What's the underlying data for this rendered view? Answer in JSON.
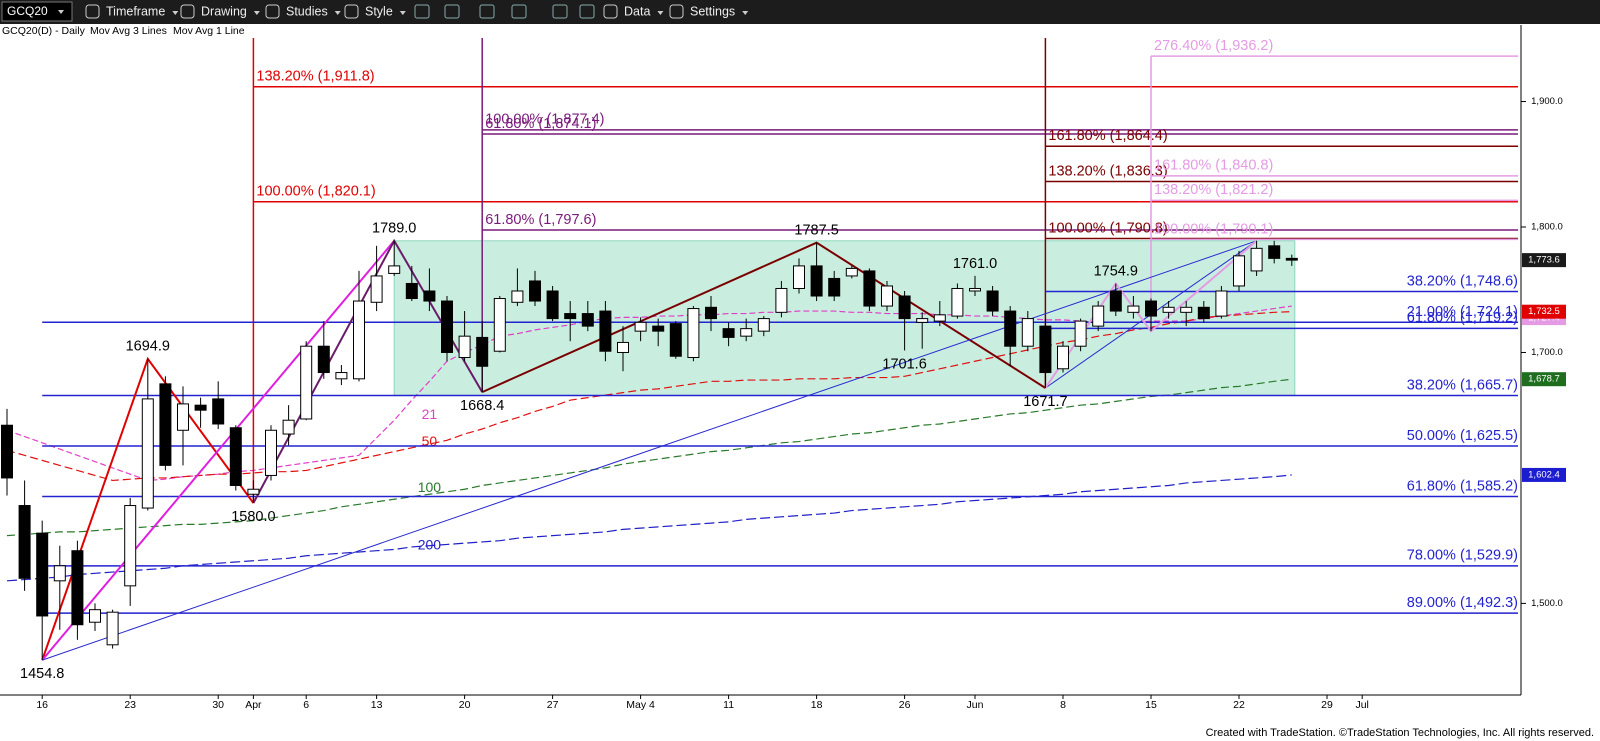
{
  "toolbar": {
    "symbol": "GCQ20",
    "items": [
      "Timeframe",
      "Drawing",
      "Studies",
      "Style",
      "Data",
      "Settings"
    ]
  },
  "chart_data": {
    "type": "candlestick",
    "title": "GCQ20(D) - Daily",
    "studies": [
      "Mov Avg 3 Lines",
      "Mov Avg 1 Line"
    ],
    "categories": [
      null,
      null,
      "16",
      null,
      null,
      null,
      null,
      "23",
      null,
      null,
      null,
      null,
      "30",
      null,
      "Apr",
      null,
      null,
      "6",
      null,
      null,
      null,
      "13",
      null,
      null,
      null,
      null,
      "20",
      null,
      null,
      null,
      null,
      "27",
      null,
      null,
      null,
      null,
      "May 4",
      null,
      null,
      null,
      null,
      "11",
      null,
      null,
      null,
      null,
      "18",
      null,
      null,
      null,
      null,
      "26",
      null,
      null,
      null,
      "Jun",
      null,
      null,
      null,
      null,
      "8",
      null,
      null,
      null,
      null,
      "15",
      null,
      null,
      null,
      null,
      "22",
      null,
      null,
      null,
      null,
      "29",
      null,
      "Jul"
    ],
    "open": [
      1642,
      1578,
      1556,
      1518,
      1542,
      1485,
      1467,
      1514,
      1576,
      1675,
      1638,
      1658,
      1663,
      1640,
      1587,
      1602,
      1635,
      1647,
      1705,
      1679,
      1679,
      1740,
      1763,
      1755,
      1749,
      1741,
      1696,
      1712,
      1701,
      1740,
      1757,
      1749,
      1731,
      1731,
      1733,
      1700,
      1717,
      1721,
      1723,
      1696,
      1736,
      1719,
      1713,
      1717,
      1732,
      1751,
      1769,
      1759,
      1761,
      1765,
      1737,
      1745,
      1724,
      1725,
      1729,
      1749,
      1749,
      1733,
      1705,
      1721,
      1687,
      1705,
      1721,
      1749,
      1732,
      1741,
      1732,
      1732,
      1736,
      1729,
      1753,
      1765,
      1785,
      1775,
      null,
      null,
      null,
      null
    ],
    "high": [
      1655,
      1598,
      1566,
      1546,
      1550,
      1500,
      1495,
      1584,
      1694.9,
      1681,
      1673,
      1664,
      1677,
      1642,
      1598,
      1642,
      1658,
      1709,
      1725,
      1690,
      1765,
      1785,
      1789,
      1769,
      1767,
      1745,
      1733,
      1725,
      1745,
      1767,
      1765,
      1753,
      1741,
      1741,
      1741,
      1721,
      1728,
      1727,
      1725,
      1737,
      1745,
      1724,
      1727,
      1729,
      1757,
      1775,
      1787.5,
      1765,
      1769,
      1767,
      1757,
      1749,
      1732,
      1741,
      1755,
      1761,
      1753,
      1737,
      1733,
      1727,
      1709,
      1727,
      1741,
      1754.9,
      1745,
      1743,
      1741,
      1741,
      1741,
      1753,
      1781,
      1789,
      1789,
      1778,
      null,
      null,
      null,
      null
    ],
    "low": [
      1586,
      1510,
      1454.8,
      1479,
      1471,
      1478,
      1464,
      1498,
      1574,
      1606,
      1610,
      1640,
      1639,
      1590,
      1580,
      1598,
      1626,
      1646,
      1679,
      1674,
      1677,
      1733,
      1761,
      1741,
      1733,
      1693,
      1693,
      1668.4,
      1700,
      1737,
      1737,
      1725,
      1709,
      1717,
      1693,
      1685,
      1709,
      1705,
      1695,
      1693,
      1717,
      1705,
      1709,
      1713,
      1728,
      1747,
      1741,
      1741,
      1759,
      1733,
      1733,
      1701.6,
      1703,
      1721,
      1727,
      1745,
      1729,
      1689,
      1701,
      1671.7,
      1684,
      1701,
      1717,
      1729,
      1727,
      1717,
      1727,
      1721,
      1724,
      1727,
      1749,
      1761,
      1771,
      1769,
      null,
      null,
      null,
      null
    ],
    "close": [
      1600,
      1520,
      1490,
      1530,
      1483,
      1495,
      1493,
      1578,
      1663,
      1610,
      1659,
      1654,
      1643,
      1594,
      1591,
      1638,
      1646,
      1705,
      1684,
      1684,
      1741,
      1761,
      1769,
      1743,
      1741,
      1700,
      1713,
      1689,
      1743,
      1749,
      1741,
      1727,
      1727,
      1721,
      1701,
      1708,
      1724,
      1717,
      1697,
      1735,
      1727,
      1712,
      1719,
      1727,
      1751,
      1769,
      1745,
      1745,
      1767,
      1737,
      1753,
      1727,
      1727,
      1730,
      1751,
      1751,
      1733,
      1705,
      1727,
      1684,
      1705,
      1725,
      1737,
      1733,
      1737,
      1729,
      1736,
      1736,
      1727,
      1749,
      1777,
      1783,
      1775,
      1773.6,
      null,
      null,
      null,
      null
    ],
    "up_color": "#ffffff",
    "down_color": "#000000",
    "ylim": [
      1427,
      1961
    ],
    "yticks": [
      {
        "value": 1500,
        "label": "1,500.0"
      },
      {
        "value": 1700,
        "label": "1,700.0"
      },
      {
        "value": 1800,
        "label": "1,800.0"
      },
      {
        "value": 1900,
        "label": "1,900.0"
      }
    ],
    "moving_averages": [
      {
        "name": "21",
        "color": "#e040c8",
        "values": [
          1638,
          1633,
          1628,
          1623,
          1618,
          1613,
          1608,
          1603,
          1598,
          1599,
          1601,
          1602,
          1603,
          1605,
          1606,
          1608,
          1610,
          1612,
          1614,
          1616,
          1618,
          1632,
          1646,
          1662,
          1677,
          1693,
          1700,
          1706,
          1713,
          1715,
          1718,
          1720,
          1722,
          1725,
          1727,
          1728,
          1728,
          1729,
          1729,
          1730,
          1730,
          1731,
          1731,
          1732,
          1732,
          1733,
          1733,
          1733,
          1732,
          1732,
          1731,
          1731,
          1731,
          1730,
          1730,
          1729,
          1729,
          1728,
          1727,
          1726,
          1726,
          1725,
          1724,
          1724,
          1724,
          1725,
          1725,
          1725,
          1727,
          1729,
          1731,
          1733,
          1735,
          1737,
          null,
          null,
          null,
          null
        ]
      },
      {
        "name": "50",
        "color": "#e01010",
        "values": [
          1622,
          1618,
          1614,
          1610,
          1606,
          1602,
          1598,
          1599,
          1600,
          1600,
          1601,
          1602,
          1603,
          1603,
          1604,
          1605,
          1605,
          1606,
          1609,
          1612,
          1615,
          1618,
          1621,
          1624,
          1627,
          1630,
          1635,
          1639,
          1644,
          1648,
          1653,
          1657,
          1662,
          1664,
          1666,
          1668,
          1670,
          1671,
          1673,
          1675,
          1677,
          1677,
          1678,
          1678,
          1678,
          1679,
          1679,
          1679,
          1680,
          1680,
          1680,
          1681,
          1684,
          1687,
          1690,
          1693,
          1696,
          1699,
          1702,
          1705,
          1708,
          1710,
          1713,
          1715,
          1718,
          1720,
          1723,
          1725,
          1728,
          1729,
          1730,
          1731,
          1732,
          1732.5,
          null,
          null,
          null,
          null
        ]
      },
      {
        "name": "100",
        "color": "#2a7a2a",
        "values": [
          1554,
          1555,
          1556,
          1557,
          1557,
          1558,
          1559,
          1560,
          1561,
          1562,
          1563,
          1563,
          1564,
          1565,
          1566,
          1568,
          1570,
          1572,
          1574,
          1577,
          1579,
          1581,
          1583,
          1585,
          1587,
          1589,
          1591,
          1594,
          1596,
          1598,
          1600,
          1602,
          1604,
          1606,
          1608,
          1611,
          1613,
          1615,
          1617,
          1619,
          1621,
          1622,
          1624,
          1626,
          1628,
          1629,
          1631,
          1633,
          1635,
          1636,
          1638,
          1640,
          1642,
          1643,
          1645,
          1647,
          1649,
          1651,
          1652,
          1654,
          1656,
          1658,
          1659,
          1661,
          1663,
          1665,
          1666,
          1668,
          1670,
          1672,
          1673,
          1675,
          1677,
          1678.7,
          null,
          null,
          null,
          null
        ]
      },
      {
        "name": "200",
        "color": "#2020c8",
        "values": [
          1518,
          1519,
          1520,
          1521,
          1523,
          1524,
          1525,
          1526,
          1527,
          1528,
          1530,
          1531,
          1532,
          1533,
          1534,
          1535,
          1536,
          1538,
          1539,
          1540,
          1541,
          1542,
          1543,
          1545,
          1546,
          1547,
          1548,
          1549,
          1550,
          1552,
          1553,
          1554,
          1555,
          1556,
          1557,
          1559,
          1560,
          1561,
          1562,
          1563,
          1564,
          1565,
          1567,
          1568,
          1569,
          1570,
          1571,
          1572,
          1574,
          1575,
          1576,
          1577,
          1578,
          1579,
          1581,
          1582,
          1583,
          1584,
          1585,
          1586,
          1587,
          1589,
          1590,
          1591,
          1592,
          1593,
          1594,
          1596,
          1597,
          1598,
          1599,
          1600,
          1601,
          1602.4,
          null,
          null,
          null,
          null
        ]
      }
    ],
    "swing_labels": [
      {
        "label": "1454.8",
        "value": 1454.8
      },
      {
        "label": "1694.9",
        "value": 1694.9
      },
      {
        "label": "1580.0",
        "value": 1580
      },
      {
        "label": "1789.0",
        "value": 1789
      },
      {
        "label": "1668.4",
        "value": 1668.4
      },
      {
        "label": "1787.5",
        "value": 1787.5
      },
      {
        "label": "1701.6",
        "value": 1701.6
      },
      {
        "label": "1761.0",
        "value": 1761
      },
      {
        "label": "1671.7",
        "value": 1671.7
      },
      {
        "label": "1754.9",
        "value": 1754.9
      }
    ],
    "fib_groups": [
      {
        "color": "#e00000",
        "label_side": "left",
        "levels": [
          {
            "label": "138.20% (1,911.8)",
            "value": 1911.8
          },
          {
            "label": "100.00% (1,820.1)",
            "value": 1820.1
          }
        ]
      },
      {
        "color": "#7a1a7a",
        "label_side": "left",
        "levels": [
          {
            "label": "100.00% (1,877.4)",
            "value": 1877.4
          },
          {
            "label": "61.80% (1,874.1)",
            "value": 1874.1
          },
          {
            "label": "61.80% (1,797.6)",
            "value": 1797.6
          }
        ]
      },
      {
        "color": "#7a0000",
        "label_side": "left",
        "levels": [
          {
            "label": "161.80% (1,864.4)",
            "value": 1864.4
          },
          {
            "label": "138.20% (1,836.3)",
            "value": 1836.3
          },
          {
            "label": "100.00% (1,790.8)",
            "value": 1790.8
          }
        ]
      },
      {
        "color": "#e49be4",
        "label_side": "left",
        "levels": [
          {
            "label": "276.40% (1,936.2)",
            "value": 1936.2
          },
          {
            "label": "161.80% (1,840.8)",
            "value": 1840.8
          },
          {
            "label": "138.20% (1,821.2)",
            "value": 1821.2
          },
          {
            "label": "100.00% (1,790.1)",
            "value": 1790.1
          }
        ]
      },
      {
        "color": "#2323d0",
        "label_side": "right",
        "levels": [
          {
            "label": "21.00% (1,724.1)",
            "value": 1724.1
          },
          {
            "label": "38.20% (1,665.7)",
            "value": 1665.7
          },
          {
            "label": "50.00% (1,625.5)",
            "value": 1625.5
          },
          {
            "label": "61.80% (1,585.2)",
            "value": 1585.2
          },
          {
            "label": "78.00% (1,529.9)",
            "value": 1529.9
          },
          {
            "label": "89.00% (1,492.3)",
            "value": 1492.3
          }
        ]
      },
      {
        "color": "#2323d0",
        "label_side": "right",
        "levels": [
          {
            "label": "38.20% (1,748.6)",
            "value": 1748.6
          },
          {
            "label": "61.80% (1,719.2)",
            "value": 1719.2
          }
        ]
      }
    ],
    "price_tags": [
      {
        "label": "1,727.4",
        "value": 1727.4,
        "color": "#e49be4"
      },
      {
        "label": "1,773.6",
        "value": 1773.6,
        "color": "#1a1a1a"
      },
      {
        "label": "1,732.5",
        "value": 1732.5,
        "color": "#e00000"
      },
      {
        "label": "1,678.7",
        "value": 1678.7,
        "color": "#1f6e1f"
      },
      {
        "label": "1,602.4",
        "value": 1602.4,
        "color": "#1c1cd0"
      }
    ],
    "range_box": {
      "color": "#c9eee0",
      "border": "#8cd5bf"
    }
  },
  "footer": "Created with TradeStation. ©TradeStation Technologies, Inc. All rights reserved."
}
